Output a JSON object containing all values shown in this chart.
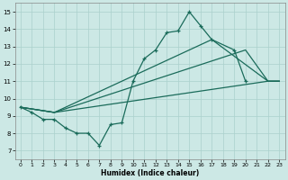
{
  "xlabel": "Humidex (Indice chaleur)",
  "xlim": [
    -0.5,
    23.5
  ],
  "ylim": [
    6.5,
    15.5
  ],
  "xticks": [
    0,
    1,
    2,
    3,
    4,
    5,
    6,
    7,
    8,
    9,
    10,
    11,
    12,
    13,
    14,
    15,
    16,
    17,
    18,
    19,
    20,
    21,
    22,
    23
  ],
  "yticks": [
    7,
    8,
    9,
    10,
    11,
    12,
    13,
    14,
    15
  ],
  "bg_color": "#cce8e5",
  "grid_color": "#aad0cc",
  "line_color": "#1a6b5a",
  "main_x": [
    0,
    1,
    2,
    3,
    4,
    5,
    6,
    7,
    8,
    9,
    10,
    11,
    12,
    13,
    14,
    15,
    16,
    17,
    19,
    20
  ],
  "main_y": [
    9.5,
    9.2,
    8.8,
    8.8,
    8.3,
    8.0,
    8.0,
    7.3,
    8.5,
    8.6,
    11.0,
    12.3,
    12.8,
    13.8,
    13.9,
    15.0,
    14.2,
    13.4,
    12.8,
    11.0
  ],
  "trend1_x": [
    0,
    3,
    22,
    23
  ],
  "trend1_y": [
    9.5,
    9.2,
    11.0,
    11.0
  ],
  "trend2_x": [
    0,
    3,
    17,
    22,
    23
  ],
  "trend2_y": [
    9.5,
    9.2,
    13.4,
    11.0,
    11.0
  ],
  "trend3_x": [
    0,
    3,
    20,
    22,
    23
  ],
  "trend3_y": [
    9.5,
    9.2,
    12.8,
    11.0,
    11.0
  ]
}
